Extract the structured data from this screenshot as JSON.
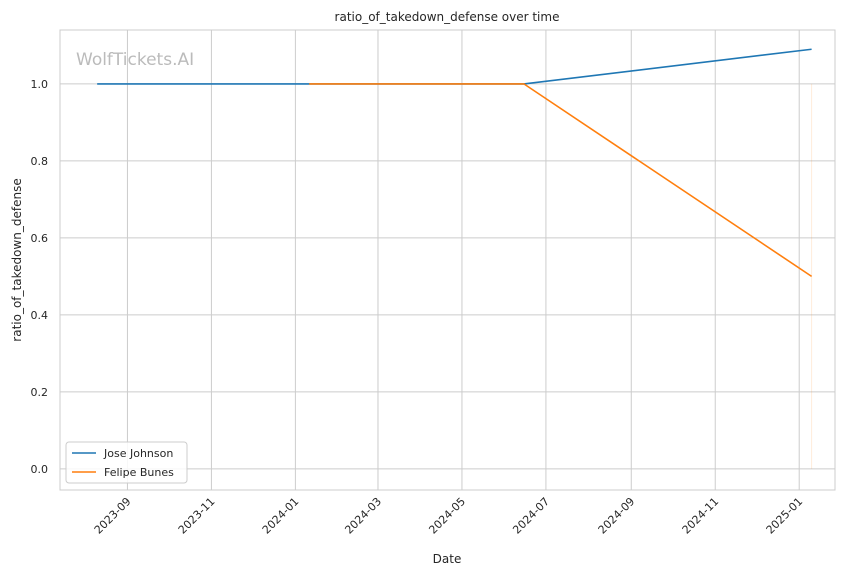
{
  "chart_data": {
    "type": "line",
    "title": "ratio_of_takedown_defense over time",
    "xlabel": "Date",
    "ylabel": "ratio_of_takedown_defense",
    "watermark": "WolfTickets.AI",
    "xlim": [
      "2023-07-14",
      "2025-01-27"
    ],
    "ylim": [
      -0.055,
      1.14
    ],
    "x_ticks": [
      "2023-09",
      "2023-11",
      "2024-01",
      "2024-03",
      "2024-05",
      "2024-07",
      "2024-09",
      "2024-11",
      "2025-01"
    ],
    "y_ticks": [
      "0.0",
      "0.2",
      "0.4",
      "0.6",
      "0.8",
      "1.0"
    ],
    "grid": true,
    "legend_position": "lower-left",
    "series": [
      {
        "name": "Jose Johnson",
        "color": "#1f77b4",
        "x": [
          "2023-08-10",
          "2024-06-15",
          "2025-01-10"
        ],
        "y": [
          1.0,
          1.0,
          1.09
        ]
      },
      {
        "name": "Felipe Bunes",
        "color": "#ff7f0e",
        "x": [
          "2024-01-11",
          "2024-06-15",
          "2025-01-10"
        ],
        "y": [
          1.0,
          1.0,
          0.5
        ]
      }
    ]
  }
}
